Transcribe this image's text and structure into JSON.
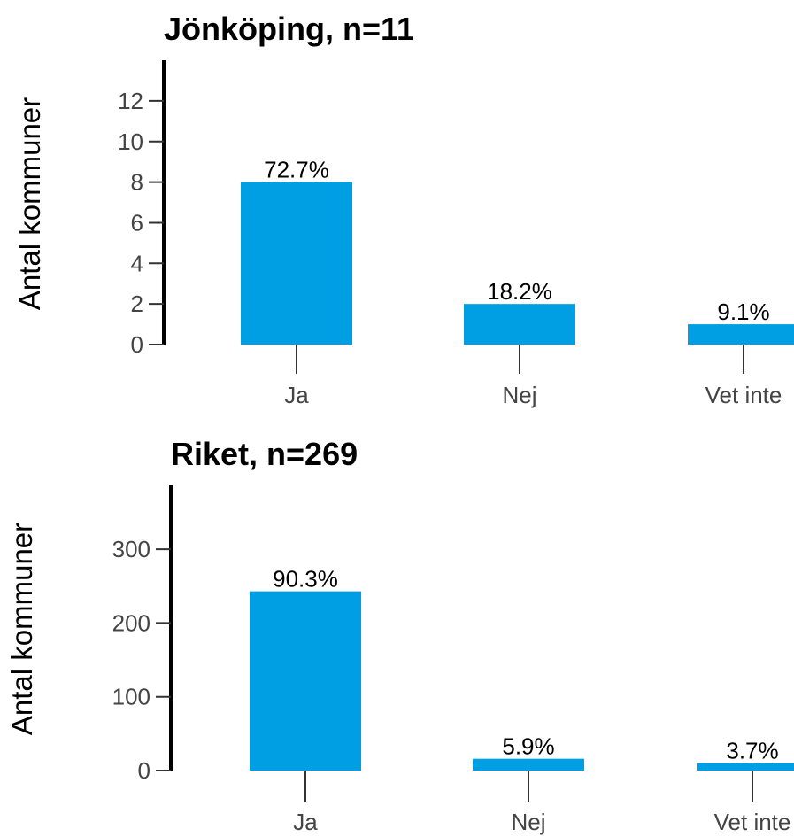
{
  "chart_data": [
    {
      "type": "bar",
      "title": "Jönköping, n=11",
      "ylabel": "Antal kommuner",
      "xlabel": "",
      "categories": [
        "Ja",
        "Nej",
        "Vet inte"
      ],
      "values": [
        8,
        2,
        1
      ],
      "data_labels": [
        "72.7%",
        "18.2%",
        "9.1%"
      ],
      "yticks": [
        0,
        2,
        4,
        6,
        8,
        10,
        12
      ],
      "ylim": [
        0,
        13
      ],
      "bar_color": "#009fe3",
      "grid": false
    },
    {
      "type": "bar",
      "title": "Riket, n=269",
      "ylabel": "Antal kommuner",
      "xlabel": "",
      "categories": [
        "Ja",
        "Nej",
        "Vet inte"
      ],
      "values": [
        243,
        16,
        10
      ],
      "data_labels": [
        "90.3%",
        "5.9%",
        "3.7%"
      ],
      "yticks": [
        0,
        100,
        200,
        300
      ],
      "ylim": [
        0,
        365
      ],
      "bar_color": "#009fe3",
      "grid": false
    }
  ]
}
